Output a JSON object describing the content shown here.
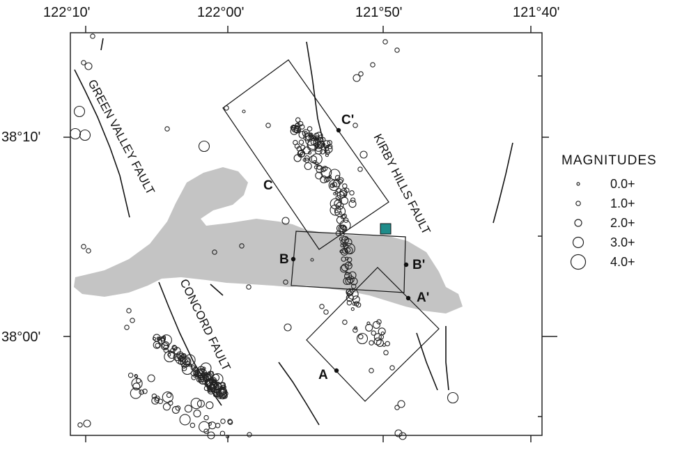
{
  "axes": {
    "longitude_ticks": [
      "122°10'",
      "122°00'",
      "121°50'",
      "121°40'"
    ],
    "latitude_ticks": [
      "38°10'",
      "38°00'"
    ]
  },
  "faults": {
    "green_valley": "GREEN VALLEY FAULT",
    "kirby_hills": "KIRBY HILLS FAULT",
    "concord": "CONCORD FAULT"
  },
  "sections": [
    {
      "start": "A",
      "end": "A'"
    },
    {
      "start": "B",
      "end": "B'"
    },
    {
      "start": "C",
      "end": "C'"
    }
  ],
  "legend": {
    "title": "MAGNITUDES",
    "items": [
      {
        "label": "0.0+",
        "magnitude": 0
      },
      {
        "label": "1.0+",
        "magnitude": 1
      },
      {
        "label": "2.0+",
        "magnitude": 2
      },
      {
        "label": "3.0+",
        "magnitude": 3
      },
      {
        "label": "4.0+",
        "magnitude": 4
      }
    ]
  },
  "colors": {
    "water": "#c4c4c4",
    "station": "#1f8c8a",
    "ink": "#111111"
  }
}
